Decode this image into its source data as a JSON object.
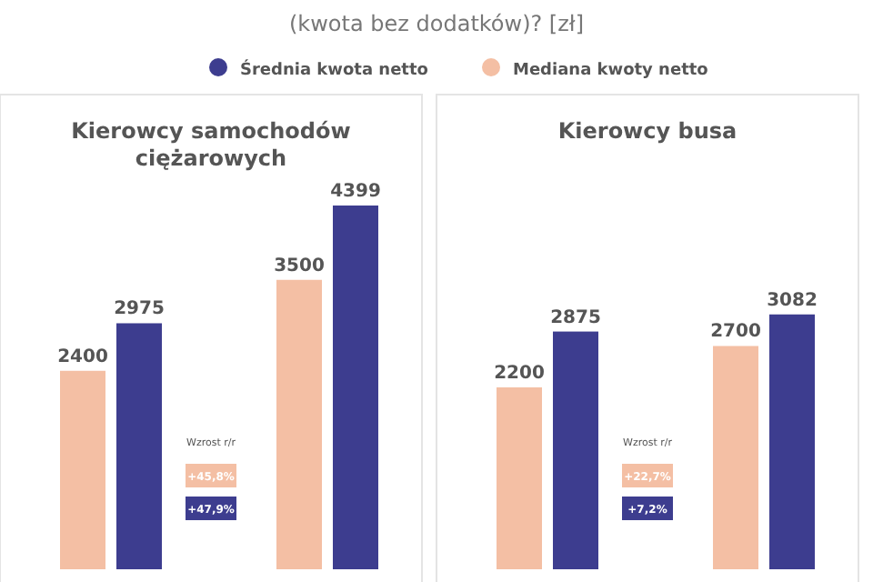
{
  "chart_data": [
    {
      "type": "bar",
      "title": "(kwota bez dodatków)? [zł]",
      "subtitle": "Kierowcy samochodów ciężarowych",
      "categories": [
        null,
        null
      ],
      "legend": "top",
      "data_labels": true,
      "series": [
        {
          "name": "Średnia kwota netto",
          "color": "#3d3d8f",
          "values": [
            2975,
            4399
          ]
        },
        {
          "name": "Mediana kwoty netto",
          "color": "#f4bfa4",
          "values": [
            2400,
            3500
          ]
        }
      ],
      "annotations": [
        "Wzrost r/r",
        "+45,8%",
        "+47,9%"
      ]
    },
    {
      "type": "bar",
      "subtitle": "Kierowcy busa",
      "categories": [
        null,
        null
      ],
      "data_labels": true,
      "series": [
        {
          "color": "#3d3d8f",
          "values": [
            2875,
            3082
          ]
        },
        {
          "color": "#f4bfa4",
          "values": [
            2200,
            2700
          ]
        }
      ],
      "annotations": [
        "Wzrost r/r",
        "+22,7%",
        "+7,2%"
      ]
    }
  ]
}
